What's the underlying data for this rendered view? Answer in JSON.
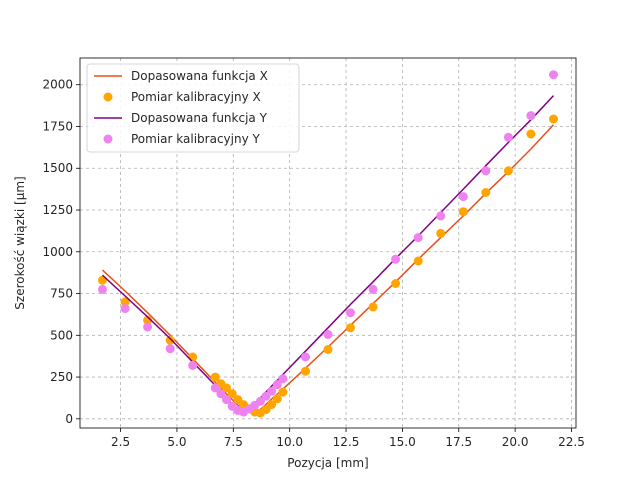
{
  "chart_data": {
    "type": "line+scatter",
    "xlabel": "Pozycja [mm]",
    "ylabel": "Szerokość wiązki [μm]",
    "xlim": [
      0.7,
      22.7
    ],
    "ylim": [
      -55,
      2160
    ],
    "x_ticks": [
      2.5,
      5.0,
      7.5,
      10.0,
      12.5,
      15.0,
      17.5,
      20.0,
      22.5
    ],
    "x_tick_labels": [
      "2.5",
      "5.0",
      "7.5",
      "10.0",
      "12.5",
      "15.0",
      "17.5",
      "20.0",
      "22.5"
    ],
    "y_ticks": [
      0,
      250,
      500,
      750,
      1000,
      1250,
      1500,
      1750,
      2000
    ],
    "y_tick_labels": [
      "0",
      "250",
      "500",
      "750",
      "1000",
      "1250",
      "1500",
      "1750",
      "2000"
    ],
    "grid": true,
    "legend_position": "top-left",
    "series": [
      {
        "name": "Dopasowana funkcja X",
        "kind": "line",
        "color": "#e8501a",
        "x": [
          1.7,
          2.7,
          3.7,
          4.7,
          5.7,
          6.7,
          7.2,
          7.7,
          8.0,
          8.3,
          8.6,
          8.8,
          9.2,
          9.7,
          10.7,
          11.7,
          12.7,
          13.7,
          14.7,
          15.7,
          16.7,
          17.7,
          18.7,
          19.7,
          20.7,
          21.7
        ],
        "y": [
          890,
          765,
          635,
          500,
          360,
          218,
          148,
          82,
          55,
          40,
          48,
          68,
          118,
          178,
          303,
          430,
          560,
          690,
          820,
          955,
          1085,
          1215,
          1350,
          1480,
          1615,
          1760
        ]
      },
      {
        "name": "Pomiar kalibracyjny X",
        "kind": "scatter",
        "color": "#ffa500",
        "x": [
          1.7,
          2.7,
          3.7,
          4.7,
          5.7,
          6.7,
          6.95,
          7.2,
          7.45,
          7.7,
          7.95,
          8.2,
          8.45,
          8.7,
          8.95,
          9.2,
          9.45,
          9.7,
          10.7,
          11.7,
          12.7,
          13.7,
          14.7,
          15.7,
          16.7,
          17.7,
          18.7,
          19.7,
          20.7,
          21.7
        ],
        "y": [
          830,
          700,
          590,
          470,
          370,
          250,
          210,
          185,
          150,
          115,
          85,
          60,
          40,
          35,
          55,
          85,
          120,
          160,
          285,
          415,
          545,
          670,
          810,
          945,
          1110,
          1240,
          1355,
          1485,
          1705,
          1795
        ]
      },
      {
        "name": "Dopasowana funkcja Y",
        "kind": "line",
        "color": "#800080",
        "x": [
          1.7,
          2.7,
          3.7,
          4.7,
          5.7,
          6.7,
          7.2,
          7.5,
          7.8,
          8.0,
          8.3,
          8.7,
          9.2,
          9.7,
          10.7,
          11.7,
          12.7,
          13.7,
          14.7,
          15.7,
          16.7,
          17.7,
          18.7,
          19.7,
          20.7,
          21.7
        ],
        "y": [
          860,
          735,
          610,
          480,
          340,
          200,
          125,
          80,
          45,
          42,
          75,
          125,
          195,
          265,
          405,
          545,
          685,
          820,
          960,
          1095,
          1235,
          1375,
          1515,
          1655,
          1790,
          1935
        ]
      },
      {
        "name": "Pomiar kalibracyjny Y",
        "kind": "scatter",
        "color": "#ee82ee",
        "x": [
          1.7,
          2.7,
          3.7,
          4.7,
          5.7,
          6.7,
          6.95,
          7.2,
          7.45,
          7.7,
          7.95,
          8.2,
          8.45,
          8.7,
          8.95,
          9.2,
          9.45,
          9.7,
          10.7,
          11.7,
          12.7,
          13.7,
          14.7,
          15.7,
          16.7,
          17.7,
          18.7,
          19.7,
          20.7,
          21.7
        ],
        "y": [
          775,
          660,
          550,
          420,
          320,
          185,
          150,
          115,
          75,
          50,
          40,
          60,
          80,
          105,
          135,
          165,
          205,
          240,
          370,
          505,
          635,
          775,
          955,
          1085,
          1215,
          1330,
          1485,
          1685,
          1815,
          2060
        ]
      }
    ]
  }
}
